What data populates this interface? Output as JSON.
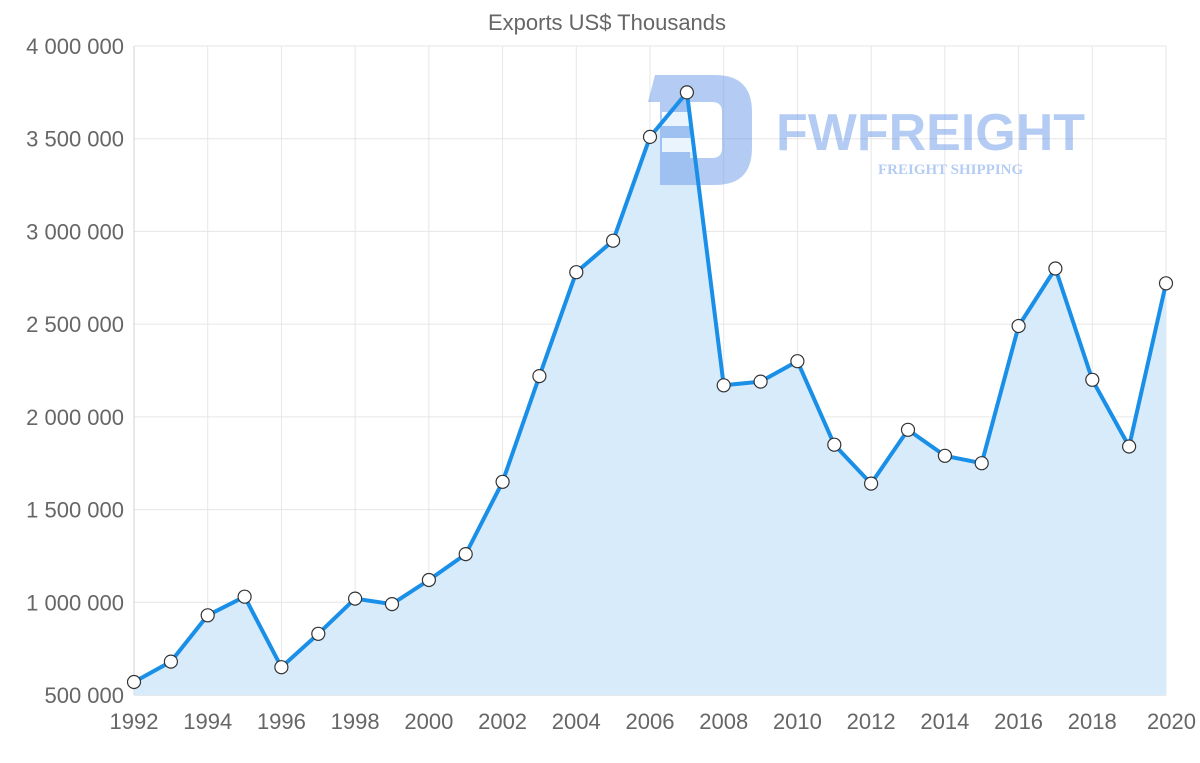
{
  "chart_data": {
    "type": "area",
    "title": "Exports US$ Thousands",
    "xlabel": "",
    "ylabel": "",
    "ylim": [
      500000,
      4000000
    ],
    "xlim": [
      1992,
      2020
    ],
    "yticks": [
      500000,
      1000000,
      1500000,
      2000000,
      2500000,
      3000000,
      3500000,
      4000000
    ],
    "ytick_labels": [
      "500 000",
      "1 000 000",
      "1 500 000",
      "2 000 000",
      "2 500 000",
      "3 000 000",
      "3 500 000",
      "4 000 000"
    ],
    "xticks": [
      1992,
      1994,
      1996,
      1998,
      2000,
      2002,
      2004,
      2006,
      2008,
      2010,
      2012,
      2014,
      2016,
      2018,
      2020
    ],
    "xtick_labels": [
      "1992",
      "1994",
      "1996",
      "1998",
      "2000",
      "2002",
      "2004",
      "2006",
      "2008",
      "2010",
      "2012",
      "2014",
      "2016",
      "2018",
      "2020"
    ],
    "grid": true,
    "legend": "none",
    "series": [
      {
        "name": "Exports",
        "color": "#1a8fe8",
        "fill_color": "#d7ebfb",
        "x": [
          1992,
          1993,
          1994,
          1995,
          1996,
          1997,
          1998,
          1999,
          2000,
          2001,
          2002,
          2003,
          2004,
          2005,
          2006,
          2007,
          2008,
          2009,
          2010,
          2011,
          2012,
          2013,
          2014,
          2015,
          2016,
          2017,
          2018,
          2019,
          2020
        ],
        "values": [
          570000,
          680000,
          930000,
          1030000,
          650000,
          830000,
          1020000,
          990000,
          1120000,
          1260000,
          1650000,
          2220000,
          2780000,
          2950000,
          3510000,
          3750000,
          2170000,
          2190000,
          2300000,
          1850000,
          1640000,
          1930000,
          1790000,
          1750000,
          2490000,
          2800000,
          2200000,
          1840000,
          2720000
        ]
      }
    ]
  },
  "watermark": {
    "brand": "FWFREIGHT",
    "tagline": "FREIGHT SHIPPING",
    "color": "#5b8fe6"
  }
}
